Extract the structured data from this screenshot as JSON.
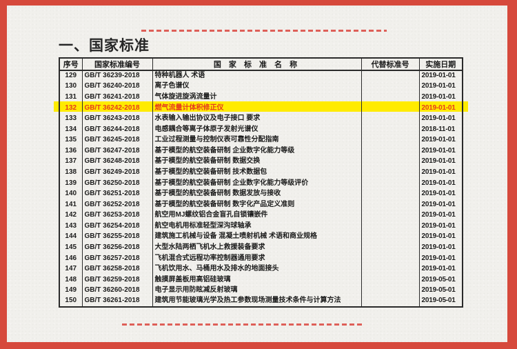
{
  "colors": {
    "frame": "#d6493c",
    "page": "#f1f0ec",
    "dash": "#de5f58",
    "highlight_bg": "#ffeb00",
    "highlight_text": "#e63c1e",
    "table_border": "#2a2a2a",
    "text": "#1c1c1c"
  },
  "page": {
    "title": "一、国家标准"
  },
  "table": {
    "headers": [
      "序号",
      "国家标准编号",
      "国 家 标 准 名 称",
      "代替标准号",
      "实施日期"
    ],
    "rows": [
      {
        "no": "129",
        "code": "GB/T 36239-2018",
        "name": "特种机器人  术语",
        "replaced": "",
        "date": "2019-01-01",
        "highlight": false
      },
      {
        "no": "130",
        "code": "GB/T 36240-2018",
        "name": "离子色谱仪",
        "replaced": "",
        "date": "2019-01-01",
        "highlight": false
      },
      {
        "no": "131",
        "code": "GB/T 36241-2018",
        "name": "气体旋进旋涡流量计",
        "replaced": "",
        "date": "2019-01-01",
        "highlight": false
      },
      {
        "no": "132",
        "code": "GB/T 36242-2018",
        "name": "燃气流量计体积修正仪",
        "replaced": "",
        "date": "2019-01-01",
        "highlight": true
      },
      {
        "no": "133",
        "code": "GB/T 36243-2018",
        "name": "水表输入输出协议及电子接口  要求",
        "replaced": "",
        "date": "2019-01-01",
        "highlight": false
      },
      {
        "no": "134",
        "code": "GB/T 36244-2018",
        "name": "电感耦合等离子体原子发射光谱仪",
        "replaced": "",
        "date": "2018-11-01",
        "highlight": false
      },
      {
        "no": "135",
        "code": "GB/T 36245-2018",
        "name": "工业过程测量与控制仪表可靠性分配指南",
        "replaced": "",
        "date": "2019-01-01",
        "highlight": false
      },
      {
        "no": "136",
        "code": "GB/T 36247-2018",
        "name": "基于模型的航空装备研制  企业数字化能力等级",
        "replaced": "",
        "date": "2019-01-01",
        "highlight": false
      },
      {
        "no": "137",
        "code": "GB/T 36248-2018",
        "name": "基于模型的航空装备研制  数据交换",
        "replaced": "",
        "date": "2019-01-01",
        "highlight": false
      },
      {
        "no": "138",
        "code": "GB/T 36249-2018",
        "name": "基于模型的航空装备研制  技术数据包",
        "replaced": "",
        "date": "2019-01-01",
        "highlight": false
      },
      {
        "no": "139",
        "code": "GB/T 36250-2018",
        "name": "基于模型的航空装备研制  企业数字化能力等级评价",
        "replaced": "",
        "date": "2019-01-01",
        "highlight": false
      },
      {
        "no": "140",
        "code": "GB/T 36251-2018",
        "name": "基于模型的航空装备研制  数据发放与接收",
        "replaced": "",
        "date": "2019-01-01",
        "highlight": false
      },
      {
        "no": "141",
        "code": "GB/T 36252-2018",
        "name": "基于模型的航空装备研制  数字化产品定义准则",
        "replaced": "",
        "date": "2019-01-01",
        "highlight": false
      },
      {
        "no": "142",
        "code": "GB/T 36253-2018",
        "name": "航空用MJ螺纹铝合金盲孔自锁镶嵌件",
        "replaced": "",
        "date": "2019-01-01",
        "highlight": false
      },
      {
        "no": "143",
        "code": "GB/T 36254-2018",
        "name": "航空电机用标准轻型深沟球轴承",
        "replaced": "",
        "date": "2019-01-01",
        "highlight": false
      },
      {
        "no": "144",
        "code": "GB/T 36255-2018",
        "name": "建筑施工机械与设备  混凝土喷射机械  术语和商业规格",
        "replaced": "",
        "date": "2019-01-01",
        "highlight": false
      },
      {
        "no": "145",
        "code": "GB/T 36256-2018",
        "name": "大型水陆两栖飞机水上救援装备要求",
        "replaced": "",
        "date": "2019-01-01",
        "highlight": false
      },
      {
        "no": "146",
        "code": "GB/T 36257-2018",
        "name": "飞机混合式远程功率控制器通用要求",
        "replaced": "",
        "date": "2019-01-01",
        "highlight": false
      },
      {
        "no": "147",
        "code": "GB/T 36258-2018",
        "name": "飞机饮用水、马桶用水及排水的地面接头",
        "replaced": "",
        "date": "2019-01-01",
        "highlight": false
      },
      {
        "no": "148",
        "code": "GB/T 36259-2018",
        "name": "触摸屏盖板用高铝硅玻璃",
        "replaced": "",
        "date": "2019-05-01",
        "highlight": false
      },
      {
        "no": "149",
        "code": "GB/T 36260-2018",
        "name": "电子显示用防眩减反射玻璃",
        "replaced": "",
        "date": "2019-05-01",
        "highlight": false
      },
      {
        "no": "150",
        "code": "GB/T 36261-2018",
        "name": "建筑用节能玻璃光学及热工参数现场测量技术条件与计算方法",
        "replaced": "",
        "date": "2019-05-01",
        "highlight": false
      }
    ]
  }
}
